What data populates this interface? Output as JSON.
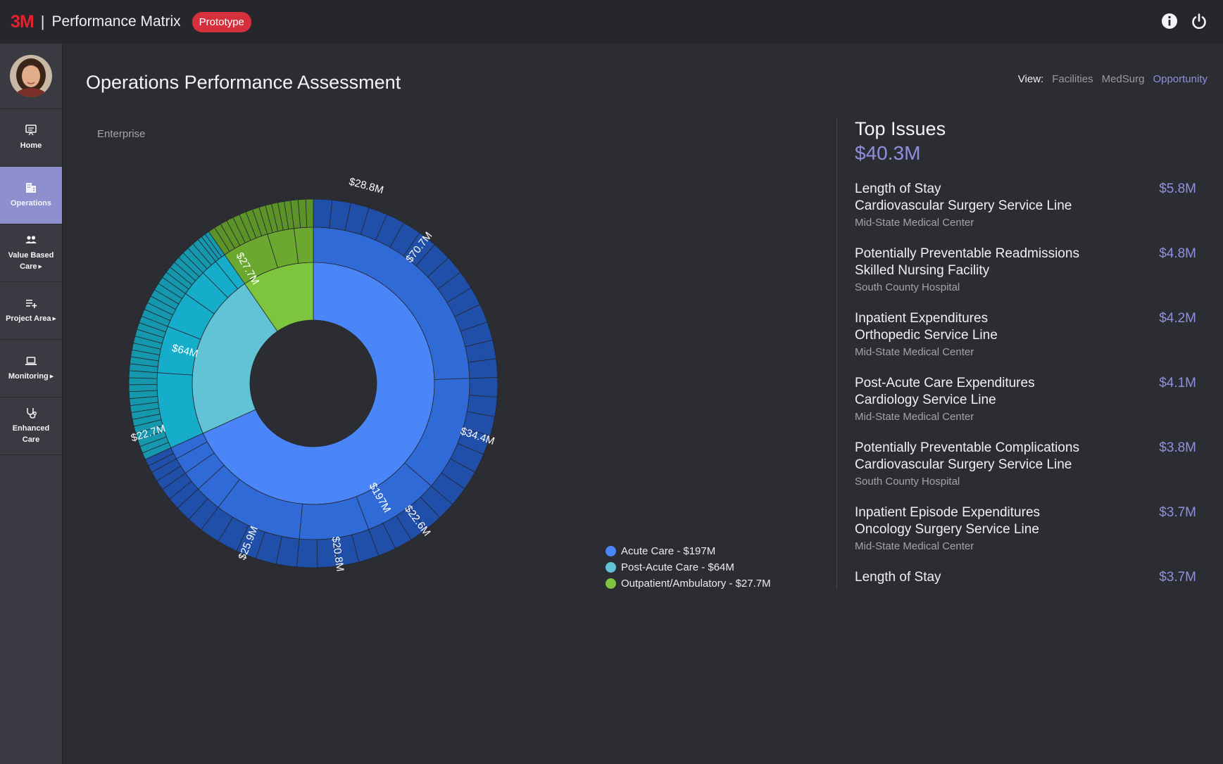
{
  "header": {
    "logo": "3M",
    "separator": "|",
    "app_title": "Performance Matrix",
    "badge": "Prototype",
    "icons": [
      "info-icon",
      "power-icon"
    ]
  },
  "sidebar": {
    "items": [
      {
        "label": "Home",
        "icon": "presentation-icon",
        "active": false,
        "submenu": false
      },
      {
        "label": "Operations",
        "icon": "building-icon",
        "active": true,
        "submenu": false
      },
      {
        "label_lines": [
          "Value Based",
          "Care"
        ],
        "icon": "people-icon",
        "active": false,
        "submenu": true
      },
      {
        "label": "Project Area",
        "icon": "playlist-add-icon",
        "active": false,
        "submenu": true
      },
      {
        "label": "Monitoring",
        "icon": "laptop-icon",
        "active": false,
        "submenu": true
      },
      {
        "label_lines": [
          "Enhanced",
          "Care"
        ],
        "icon": "stethoscope-icon",
        "active": false,
        "submenu": false
      }
    ]
  },
  "main": {
    "title": "Operations Performance Assessment",
    "view": {
      "label": "View:",
      "options": [
        "Facilities",
        "MedSurg",
        "Opportunity"
      ],
      "active": "Opportunity"
    },
    "breadcrumb": "Enterprise"
  },
  "chart_data": {
    "type": "sunburst",
    "root": "Enterprise",
    "categories": [
      {
        "name": "Acute Care",
        "value": 197,
        "color": "#4a86f8",
        "legend": "Acute Care - $197M",
        "children_labeled": [
          "$70.7M",
          "$34.4M",
          "$22.6M",
          "$20.8M",
          "$25.9M"
        ],
        "grandchild_labeled": [
          "$28.8M"
        ]
      },
      {
        "name": "Post-Acute Care",
        "value": 64,
        "color": "#62c3d6",
        "legend": "Post-Acute Care - $64M",
        "children_labeled": [
          "$22.7M"
        ]
      },
      {
        "name": "Outpatient/Ambulatory",
        "value": 27.7,
        "color": "#7dc53d",
        "legend": "Outpatient/Ambulatory - $27.7M",
        "children_labeled": []
      }
    ],
    "labels": {
      "acute": "$197M",
      "post_acute": "$64M",
      "outpatient": "$27.7M",
      "a1": "$70.7M",
      "a2": "$34.4M",
      "a3": "$22.6M",
      "a4": "$20.8M",
      "a5": "$25.9M",
      "p1": "$22.7M",
      "a1_outer": "$28.8M"
    }
  },
  "top_issues": {
    "title": "Top Issues",
    "total": "$40.3M",
    "items": [
      {
        "metric": "Length of Stay",
        "service": "Cardiovascular Surgery Service Line",
        "facility": "Mid-State Medical Center",
        "amount": "$5.8M"
      },
      {
        "metric": "Potentially Preventable Readmissions",
        "service": "Skilled Nursing Facility",
        "facility": "South County Hospital",
        "amount": "$4.8M"
      },
      {
        "metric": "Inpatient Expenditures",
        "service": "Orthopedic Service Line",
        "facility": "Mid-State Medical Center",
        "amount": "$4.2M"
      },
      {
        "metric": "Post-Acute Care Expenditures",
        "service": "Cardiology Service Line",
        "facility": "Mid-State Medical Center",
        "amount": "$4.1M"
      },
      {
        "metric": "Potentially Preventable Complications",
        "service": "Cardiovascular Surgery Service Line",
        "facility": "South County Hospital",
        "amount": "$3.8M"
      },
      {
        "metric": "Inpatient Episode Expenditures",
        "service": "Oncology Surgery Service Line",
        "facility": "Mid-State Medical Center",
        "amount": "$3.7M"
      },
      {
        "metric": "Length of Stay",
        "service": "",
        "facility": "",
        "amount": "$3.7M"
      }
    ]
  }
}
